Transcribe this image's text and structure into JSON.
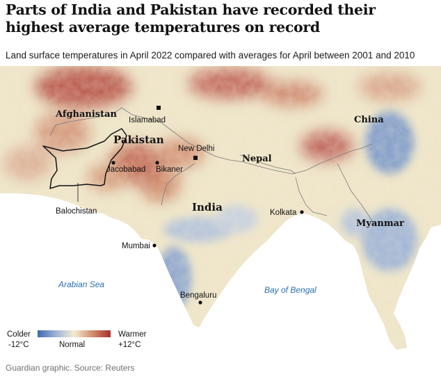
{
  "headline": "Parts of India and Pakistan have recorded their highest average temperatures on record",
  "standfirst": "Land surface temperatures in April 2022 compared with averages for April between 2001 and 2010",
  "credit": "Guardian graphic. Source: Reuters",
  "labels": {
    "afghanistan": "Afghanistan",
    "pakistan": "Pakistan",
    "china": "China",
    "nepal": "Nepal",
    "india": "India",
    "myanmar": "Myanmar",
    "balochistan": "Balochistan",
    "islamabad": "Islamabad",
    "new_delhi": "New Delhi",
    "jacobabad": "Jacobabad",
    "bikaner": "Bikaner",
    "kolkata": "Kolkata",
    "mumbai": "Mumbai",
    "bengaluru": "Bengaluru",
    "arabian_sea": "Arabian Sea",
    "bay_of_bengal": "Bay of Bengal"
  },
  "legend": {
    "colder": "Colder",
    "warmer": "Warmer",
    "min": "-12°C",
    "max": "+12°C",
    "normal": "Normal",
    "range_celsius": [
      -12,
      12
    ],
    "colors": {
      "cold": "#3d68b0",
      "neutral": "#f3ecd2",
      "warm": "#a8302c"
    }
  },
  "colors": {
    "ocean": "#ffffff",
    "land_neutral": "#efe6c9",
    "hot": "#b45142",
    "cool": "#6f8fc4",
    "border": "#7a7a7a",
    "highlight_border": "#111111",
    "sea_label": "#2a6fb0"
  }
}
